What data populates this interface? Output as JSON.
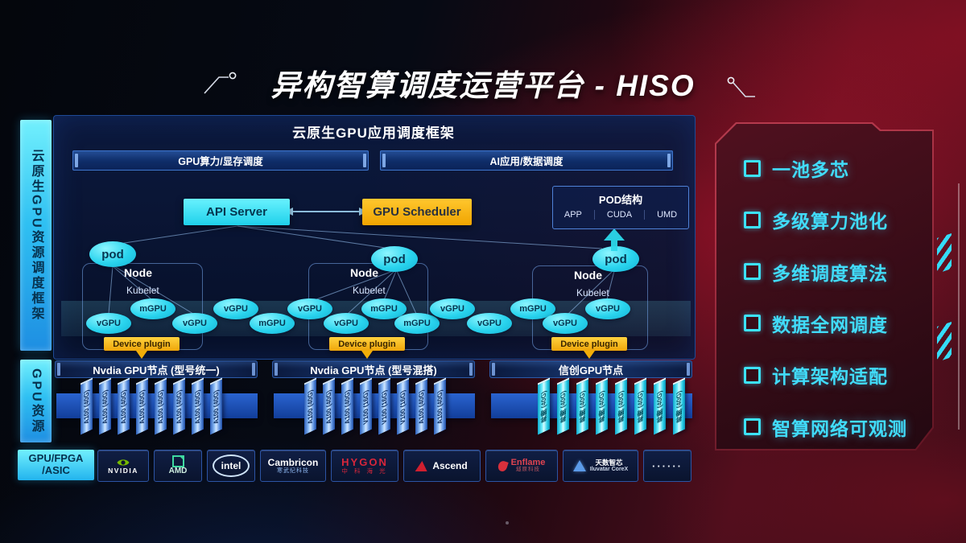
{
  "title": "异构智算调度运营平台 - HISO",
  "rails": {
    "top": "云原生GPU资源调度框架",
    "bottom": "GPU资源"
  },
  "hardware": {
    "line1": "GPU/FPGA",
    "line2": "/ASIC"
  },
  "framework": {
    "header": "云原生GPU应用调度框架",
    "bar_left": "GPU算力/显存调度",
    "bar_right": "AI应用/数据调度",
    "api_server": "API Server",
    "gpu_scheduler": "GPU Scheduler",
    "pod_struct": {
      "title": "POD结构",
      "items": [
        "APP",
        "CUDA",
        "UMD"
      ]
    },
    "pod_label": "pod",
    "node_label": "Node",
    "kubelet_label": "Kubelet",
    "device_plugin": "Device plugin",
    "gpu_ellipses": [
      "vGPU",
      "mGPU",
      "vGPU",
      "vGPU",
      "mGPU",
      "vGPU",
      "vGPU",
      "mGPU",
      "mGPU",
      "vGPU",
      "vGPU",
      "mGPU",
      "vGPU",
      "vGPU"
    ]
  },
  "gpu_groups": [
    {
      "header": "Nvdia GPU节点 (型号统一)",
      "cards": [
        "A100 (40G)",
        "A100 (40G)",
        "A100 (40G)",
        "A100 (40G)",
        "A100 (40G)",
        "A100 (40G)",
        "A100 (40G)",
        "A100 (40G)"
      ],
      "style": "blue"
    },
    {
      "header": "Nvdia GPU节点 (型号混搭)",
      "cards": [
        "A100 (40G)",
        "A100 (40G)",
        "A100 (40G)",
        "V100 (16G)",
        "V100 (16G)",
        "V100 (16G)",
        "A100 (40G)",
        "A100 (40G)"
      ],
      "style": "blue"
    },
    {
      "header": "信创GPU节点",
      "cards": [
        "昇腾 (40G)",
        "昇腾 (40G)",
        "昇腾 (40G)",
        "昇腾 (40G)",
        "昇腾 (40G)",
        "昇腾 (40G)",
        "昇腾 (40G)",
        "昇腾 (40G)"
      ],
      "style": "cyan"
    }
  ],
  "vendors": [
    {
      "id": "nvidia",
      "name": "NVIDIA"
    },
    {
      "id": "amd",
      "name": "AMD"
    },
    {
      "id": "intel",
      "name": "intel"
    },
    {
      "id": "cambricon",
      "name": "Cambricon",
      "sub": "寒武纪科技"
    },
    {
      "id": "hygon",
      "name": "HYGON",
      "sub": "中 科 海 光"
    },
    {
      "id": "ascend",
      "name": "Ascend"
    },
    {
      "id": "enflame",
      "name": "Enflame",
      "sub": "燧原科技"
    },
    {
      "id": "iluvatar",
      "name": "天数智芯",
      "sub": "Iluvatar CoreX"
    },
    {
      "id": "more",
      "name": "······"
    }
  ],
  "features": [
    "一池多芯",
    "多级算力池化",
    "多维调度算法",
    "数据全网调度",
    "计算架构适配",
    "智算网络可观测"
  ],
  "colors": {
    "cyan": "#35e0f5",
    "yellow": "#f5b30d",
    "card_blue": "#2f6fd4",
    "accent_red": "#a01325"
  }
}
